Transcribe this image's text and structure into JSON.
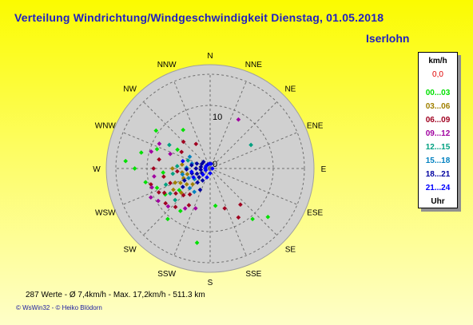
{
  "header": {
    "title": "Verteilung Windrichtung/Windgeschwindigkeit  Dienstag, 01.05.2018",
    "location": "Iserlohn"
  },
  "legend": {
    "unit": "km/h",
    "zero": "0,0",
    "ranges": [
      {
        "label": "00...03",
        "color": "#00e000"
      },
      {
        "label": "03...06",
        "color": "#a08000"
      },
      {
        "label": "06...09",
        "color": "#a00020"
      },
      {
        "label": "09...12",
        "color": "#a000a0"
      },
      {
        "label": "12...15",
        "color": "#00a080"
      },
      {
        "label": "15...18",
        "color": "#0080c0"
      },
      {
        "label": "18...21",
        "color": "#0000a0"
      },
      {
        "label": "21...24",
        "color": "#0000ff"
      }
    ],
    "footer": "Uhr"
  },
  "footer": {
    "stats": "287 Werte   -   Ø 7,4km/h  -  Max. 17,2km/h   -   511.3 km",
    "credit": "© WsWin32   -  © Heiko Blödorn"
  },
  "chart_data": {
    "type": "scatter",
    "projection": "polar",
    "title": "Verteilung Windrichtung/Windgeschwindigkeit  Dienstag, 01.05.2018",
    "direction_labels": [
      "N",
      "NNE",
      "NE",
      "ENE",
      "E",
      "ESE",
      "SE",
      "SSE",
      "S",
      "SSW",
      "SW",
      "WSW",
      "W",
      "WNW",
      "NW",
      "NNW"
    ],
    "radial_ticks": [
      0,
      10
    ],
    "radial_max": 20,
    "grid": true,
    "legend_position": "right",
    "series": [
      {
        "name": "00...03",
        "color": "#00e000",
        "points": [
          {
            "dir": 325,
            "speed": 10
          },
          {
            "dir": 305,
            "speed": 14
          },
          {
            "dir": 290,
            "speed": 12
          },
          {
            "dir": 283,
            "speed": 15
          },
          {
            "dir": 270,
            "speed": 16
          },
          {
            "dir": 258,
            "speed": 14
          },
          {
            "dir": 250,
            "speed": 12
          },
          {
            "dir": 240,
            "speed": 11
          },
          {
            "dir": 235,
            "speed": 8
          },
          {
            "dir": 215,
            "speed": 11
          },
          {
            "dir": 190,
            "speed": 16
          },
          {
            "dir": 172,
            "speed": 8
          },
          {
            "dir": 140,
            "speed": 14
          },
          {
            "dir": 130,
            "speed": 16
          },
          {
            "dir": 265,
            "speed": 10
          },
          {
            "dir": 300,
            "speed": 8
          },
          {
            "dir": 220,
            "speed": 14
          },
          {
            "dir": 275,
            "speed": 18
          }
        ]
      },
      {
        "name": "03...06",
        "color": "#a08000",
        "points": [
          {
            "dir": 250,
            "speed": 6
          },
          {
            "dir": 244,
            "speed": 7
          },
          {
            "dir": 236,
            "speed": 6
          },
          {
            "dir": 230,
            "speed": 8
          },
          {
            "dir": 256,
            "speed": 5
          },
          {
            "dir": 262,
            "speed": 6
          },
          {
            "dir": 240,
            "speed": 9
          },
          {
            "dir": 228,
            "speed": 5
          },
          {
            "dir": 248,
            "speed": 8
          },
          {
            "dir": 270,
            "speed": 8
          },
          {
            "dir": 278,
            "speed": 6
          }
        ]
      },
      {
        "name": "06...09",
        "color": "#a00020",
        "points": [
          {
            "dir": 280,
            "speed": 11
          },
          {
            "dir": 270,
            "speed": 12
          },
          {
            "dir": 260,
            "speed": 10
          },
          {
            "dir": 250,
            "speed": 9
          },
          {
            "dir": 242,
            "speed": 11
          },
          {
            "dir": 234,
            "speed": 9
          },
          {
            "dir": 225,
            "speed": 8
          },
          {
            "dir": 218,
            "speed": 7
          },
          {
            "dir": 210,
            "speed": 9
          },
          {
            "dir": 300,
            "speed": 7
          },
          {
            "dir": 315,
            "speed": 8
          },
          {
            "dir": 330,
            "speed": 6
          },
          {
            "dir": 255,
            "speed": 13
          },
          {
            "dir": 245,
            "speed": 12
          },
          {
            "dir": 265,
            "speed": 7
          },
          {
            "dir": 232,
            "speed": 12
          },
          {
            "dir": 222,
            "speed": 11
          },
          {
            "dir": 150,
            "speed": 12
          },
          {
            "dir": 140,
            "speed": 10
          },
          {
            "dir": 160,
            "speed": 9
          }
        ]
      },
      {
        "name": "09...12",
        "color": "#a000a0",
        "points": [
          {
            "dir": 30,
            "speed": 12
          },
          {
            "dir": 296,
            "speed": 12
          },
          {
            "dir": 286,
            "speed": 13
          },
          {
            "dir": 262,
            "speed": 12
          },
          {
            "dir": 252,
            "speed": 13
          },
          {
            "dir": 244,
            "speed": 14
          },
          {
            "dir": 238,
            "speed": 13
          },
          {
            "dir": 228,
            "speed": 12
          },
          {
            "dir": 212,
            "speed": 10
          },
          {
            "dir": 200,
            "speed": 9
          },
          {
            "dir": 290,
            "speed": 9
          }
        ]
      },
      {
        "name": "12...15",
        "color": "#00a080",
        "points": [
          {
            "dir": 290,
            "speed": 5
          },
          {
            "dir": 274,
            "speed": 7
          },
          {
            "dir": 262,
            "speed": 8
          },
          {
            "dir": 250,
            "speed": 10
          },
          {
            "dir": 238,
            "speed": 10
          },
          {
            "dir": 228,
            "speed": 10
          },
          {
            "dir": 60,
            "speed": 10
          },
          {
            "dir": 300,
            "speed": 10
          }
        ]
      },
      {
        "name": "15...18",
        "color": "#0080c0",
        "points": [
          {
            "dir": 285,
            "speed": 4
          },
          {
            "dir": 272,
            "speed": 5
          },
          {
            "dir": 258,
            "speed": 6
          },
          {
            "dir": 246,
            "speed": 5
          },
          {
            "dir": 236,
            "speed": 4
          },
          {
            "dir": 226,
            "speed": 6
          },
          {
            "dir": 214,
            "speed": 6
          },
          {
            "dir": 300,
            "speed": 5
          }
        ]
      },
      {
        "name": "18...21",
        "color": "#0000a0",
        "points": [
          {
            "dir": 300,
            "speed": 2
          },
          {
            "dir": 290,
            "speed": 3
          },
          {
            "dir": 280,
            "speed": 2
          },
          {
            "dir": 270,
            "speed": 3
          },
          {
            "dir": 262,
            "speed": 2
          },
          {
            "dir": 255,
            "speed": 4
          },
          {
            "dir": 248,
            "speed": 3
          },
          {
            "dir": 240,
            "speed": 2
          },
          {
            "dir": 232,
            "speed": 3
          },
          {
            "dir": 222,
            "speed": 4
          },
          {
            "dir": 212,
            "speed": 3
          },
          {
            "dir": 205,
            "speed": 5
          },
          {
            "dir": 315,
            "speed": 2
          },
          {
            "dir": 330,
            "speed": 1
          },
          {
            "dir": 280,
            "speed": 4
          },
          {
            "dir": 268,
            "speed": 5
          },
          {
            "dir": 245,
            "speed": 6
          },
          {
            "dir": 236,
            "speed": 7
          }
        ]
      },
      {
        "name": "21...24",
        "color": "#0000ff",
        "points": [
          {
            "dir": 350,
            "speed": 1
          },
          {
            "dir": 10,
            "speed": 1
          },
          {
            "dir": 300,
            "speed": 1
          },
          {
            "dir": 275,
            "speed": 1
          },
          {
            "dir": 250,
            "speed": 1
          },
          {
            "dir": 230,
            "speed": 2
          },
          {
            "dir": 200,
            "speed": 2
          },
          {
            "dir": 180,
            "speed": 1
          },
          {
            "dir": 90,
            "speed": 0.5
          },
          {
            "dir": 260,
            "speed": 4
          },
          {
            "dir": 285,
            "speed": 6
          },
          {
            "dir": 242,
            "speed": 4
          }
        ]
      }
    ]
  }
}
